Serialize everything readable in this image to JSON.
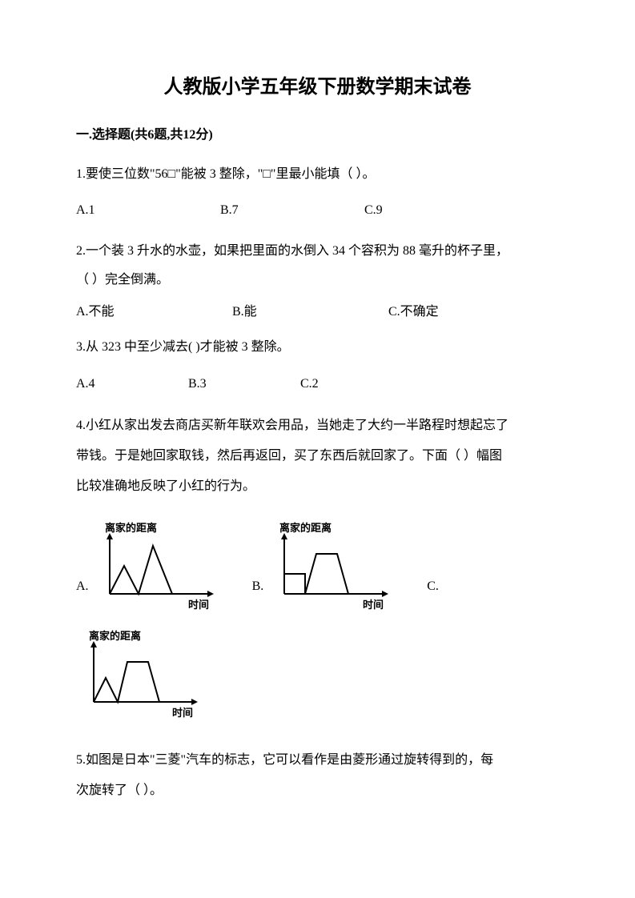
{
  "title": "人教版小学五年级下册数学期末试卷",
  "section1": {
    "header": "一.选择题(共6题,共12分)",
    "q1": {
      "text": "1.要使三位数\"56□\"能被 3 整除，\"□\"里最小能填（    ）。",
      "optA": "A.1",
      "optB": "B.7",
      "optC": "C.9"
    },
    "q2": {
      "line1": "2.一个装 3 升水的水壶，如果把里面的水倒入 34 个容积为 88 毫升的杯子里，",
      "line2": "（    ）完全倒满。",
      "optA": "A.不能",
      "optB": "B.能",
      "optC": "C.不确定"
    },
    "q3": {
      "text": "3.从 323 中至少减去(     )才能被 3 整除。",
      "optA": "A.4",
      "optB": "B.3",
      "optC": "C.2"
    },
    "q4": {
      "line1": "4.小红从家出发去商店买新年联欢会用品，当她走了大约一半路程时想起忘了",
      "line2": "带钱。于是她回家取钱，然后再返回，买了东西后就回家了。下面（   ）幅图",
      "line3": "比较准确地反映了小红的行为。",
      "optA": "A.",
      "optB": "B.",
      "optC": "C.",
      "chart_ylabel": "离家的距离",
      "chart_xlabel": "时间"
    },
    "q5": {
      "line1": "5.如图是日本\"三菱\"汽车的标志，它可以看作是由菱形通过旋转得到的，每",
      "line2": "次旋转了（    ）。"
    }
  },
  "chart_style": {
    "width": 160,
    "height": 115,
    "stroke": "#000000",
    "stroke_width": 2,
    "label_fontsize": 13,
    "label_fontweight": "bold"
  },
  "chartA": {
    "type": "line",
    "ylabel": "离家的距离",
    "xlabel": "时间",
    "points": [
      [
        0,
        0
      ],
      [
        18,
        35
      ],
      [
        36,
        0
      ],
      [
        54,
        60
      ],
      [
        78,
        0
      ]
    ]
  },
  "chartB": {
    "type": "line",
    "ylabel": "离家的距离",
    "xlabel": "时间",
    "points": [
      [
        0,
        25
      ],
      [
        26,
        25
      ],
      [
        26,
        0
      ],
      [
        40,
        50
      ],
      [
        66,
        50
      ],
      [
        80,
        0
      ]
    ]
  },
  "chartC": {
    "type": "line",
    "ylabel": "离家的距离",
    "xlabel": "时间",
    "points": [
      [
        0,
        0
      ],
      [
        15,
        30
      ],
      [
        30,
        0
      ],
      [
        42,
        50
      ],
      [
        68,
        50
      ],
      [
        82,
        0
      ]
    ]
  }
}
